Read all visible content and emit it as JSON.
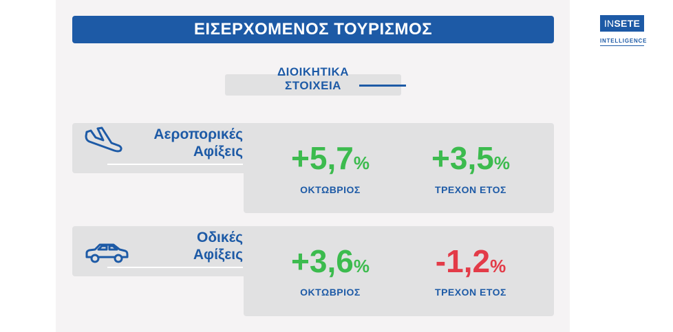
{
  "header": {
    "title": "ΕΙΣΕΡΧΟΜΕΝΟΣ ΤΟΥΡΙΣΜΟΣ"
  },
  "logo": {
    "prefix": "IN",
    "brand": "SETE",
    "subtitle": "INTELLIGENCE"
  },
  "section": {
    "label_line1": "ΔΙΟΙΚΗΤΙΚΑ",
    "label_line2": "ΣΤΟΙΧΕΙΑ"
  },
  "rows": [
    {
      "icon": "airplane-landing-icon",
      "label_line1": "Αεροπορικές",
      "label_line2": "Αφίξεις",
      "stats": [
        {
          "value": "+5,7",
          "unit": "%",
          "period": "ΟΚΤΩΒΡΙΟΣ",
          "trend": "positive"
        },
        {
          "value": "+3,5",
          "unit": "%",
          "period": "ΤΡΕΧΟΝ ΕΤΟΣ",
          "trend": "positive"
        }
      ]
    },
    {
      "icon": "car-icon",
      "label_line1": "Οδικές",
      "label_line2": "Αφίξεις",
      "stats": [
        {
          "value": "+3,6",
          "unit": "%",
          "period": "ΟΚΤΩΒΡΙΟΣ",
          "trend": "positive"
        },
        {
          "value": "-1,2",
          "unit": "%",
          "period": "ΤΡΕΧΟΝ ΕΤΟΣ",
          "trend": "negative"
        }
      ]
    }
  ],
  "colors": {
    "brand_blue": "#1d5aa6",
    "positive": "#3cbb4e",
    "negative": "#e33b48",
    "card": "#e1e1e2"
  }
}
